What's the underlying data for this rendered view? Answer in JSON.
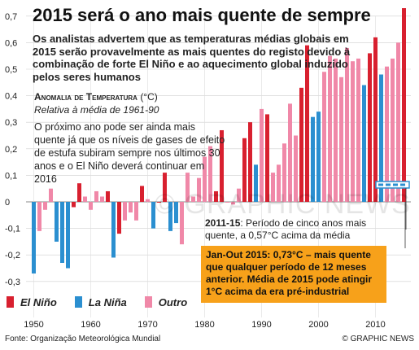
{
  "title": "2015 será o ano mais quente de sempre",
  "subtitle": "Os analistas advertem que as temperaturas médias globais em 2015 serão provavelmente as mais quentes do registo devido à combinação de forte El Niño e ao aquecimento global induzido pelos seres humanos",
  "anomaly_title": "Anomalia de Temperatura",
  "anomaly_unit": "(°C)",
  "anomaly_subtitle": "Relativa à média de 1961-90",
  "note": "O próximo ano pode ser ainda mais quente já que os níveis de gases de efeito de estufa subiram sempre nos últimos 30 anos e o El Niño deverá continuar em 2016",
  "period_label": "2011-15",
  "period_text": ": Período de cinco anos mais quente, a 0,57°C acima da média",
  "box_text": "Jan-Out 2015: 0,73°C – mais quente que qualquer período de 12 meses anterior. Média de 2015 pode atingir 1°C acima da era pré-industrial",
  "legend": [
    {
      "label": "El Niño",
      "color": "#d8202f"
    },
    {
      "label": "La Niña",
      "color": "#2b8fd0"
    },
    {
      "label": "Outro",
      "color": "#f088a8"
    }
  ],
  "source": "Fonte: Organização Meteorológica Mundial",
  "credit": "© GRAPHIC NEWS",
  "watermark": "© GRAPHIC NEWS",
  "colors": {
    "el_nino": "#d8202f",
    "la_nina": "#2b8fd0",
    "outro": "#f088a8",
    "box": "#f7a11a"
  },
  "chart_data": {
    "type": "bar",
    "ylim": [
      -0.35,
      0.7
    ],
    "y_ticks": [
      "0,7",
      "0,6",
      "0,5",
      "0,4",
      "0,3",
      "0,2",
      "0,1",
      "0",
      "-0,1",
      "-0,2",
      "-0,3"
    ],
    "y_tick_values": [
      0.7,
      0.6,
      0.5,
      0.4,
      0.3,
      0.2,
      0.1,
      0,
      -0.1,
      -0.2,
      -0.3
    ],
    "x_ticks": [
      "1950",
      "1960",
      "1970",
      "1980",
      "1990",
      "2000",
      "2010"
    ],
    "x_tick_values": [
      1950,
      1960,
      1970,
      1980,
      1990,
      2000,
      2010
    ],
    "series": [
      {
        "name": "El Niño",
        "color": "#d8202f"
      },
      {
        "name": "La Niña",
        "color": "#2b8fd0"
      },
      {
        "name": "Outro",
        "color": "#f088a8"
      }
    ],
    "bars": [
      {
        "year": 1950,
        "value": -0.27,
        "type": "la_nina"
      },
      {
        "year": 1951,
        "value": -0.11,
        "type": "outro"
      },
      {
        "year": 1952,
        "value": -0.03,
        "type": "outro"
      },
      {
        "year": 1953,
        "value": 0.05,
        "type": "outro"
      },
      {
        "year": 1954,
        "value": -0.15,
        "type": "la_nina"
      },
      {
        "year": 1955,
        "value": -0.23,
        "type": "la_nina"
      },
      {
        "year": 1956,
        "value": -0.25,
        "type": "la_nina"
      },
      {
        "year": 1957,
        "value": -0.02,
        "type": "el_nino"
      },
      {
        "year": 1958,
        "value": 0.07,
        "type": "el_nino"
      },
      {
        "year": 1959,
        "value": 0.02,
        "type": "outro"
      },
      {
        "year": 1960,
        "value": -0.03,
        "type": "outro"
      },
      {
        "year": 1961,
        "value": 0.04,
        "type": "outro"
      },
      {
        "year": 1962,
        "value": 0.02,
        "type": "outro"
      },
      {
        "year": 1963,
        "value": 0.04,
        "type": "el_nino"
      },
      {
        "year": 1964,
        "value": -0.21,
        "type": "la_nina"
      },
      {
        "year": 1965,
        "value": -0.12,
        "type": "el_nino"
      },
      {
        "year": 1966,
        "value": -0.07,
        "type": "outro"
      },
      {
        "year": 1967,
        "value": -0.04,
        "type": "outro"
      },
      {
        "year": 1968,
        "value": -0.07,
        "type": "outro"
      },
      {
        "year": 1969,
        "value": 0.06,
        "type": "el_nino"
      },
      {
        "year": 1970,
        "value": 0.01,
        "type": "outro"
      },
      {
        "year": 1971,
        "value": -0.1,
        "type": "la_nina"
      },
      {
        "year": 1972,
        "value": 0.0,
        "type": "el_nino"
      },
      {
        "year": 1973,
        "value": 0.11,
        "type": "el_nino"
      },
      {
        "year": 1974,
        "value": -0.11,
        "type": "la_nina"
      },
      {
        "year": 1975,
        "value": -0.08,
        "type": "la_nina"
      },
      {
        "year": 1976,
        "value": -0.16,
        "type": "outro"
      },
      {
        "year": 1977,
        "value": 0.11,
        "type": "outro"
      },
      {
        "year": 1978,
        "value": 0.02,
        "type": "outro"
      },
      {
        "year": 1979,
        "value": 0.09,
        "type": "outro"
      },
      {
        "year": 1980,
        "value": 0.17,
        "type": "outro"
      },
      {
        "year": 1981,
        "value": 0.21,
        "type": "outro"
      },
      {
        "year": 1982,
        "value": 0.04,
        "type": "el_nino"
      },
      {
        "year": 1983,
        "value": 0.27,
        "type": "el_nino"
      },
      {
        "year": 1984,
        "value": 0.0,
        "type": "outro"
      },
      {
        "year": 1985,
        "value": -0.01,
        "type": "outro"
      },
      {
        "year": 1986,
        "value": 0.05,
        "type": "outro"
      },
      {
        "year": 1987,
        "value": 0.24,
        "type": "el_nino"
      },
      {
        "year": 1988,
        "value": 0.3,
        "type": "el_nino"
      },
      {
        "year": 1989,
        "value": 0.14,
        "type": "la_nina"
      },
      {
        "year": 1990,
        "value": 0.35,
        "type": "outro"
      },
      {
        "year": 1991,
        "value": 0.33,
        "type": "el_nino"
      },
      {
        "year": 1992,
        "value": 0.11,
        "type": "outro"
      },
      {
        "year": 1993,
        "value": 0.14,
        "type": "outro"
      },
      {
        "year": 1994,
        "value": 0.22,
        "type": "outro"
      },
      {
        "year": 1995,
        "value": 0.37,
        "type": "outro"
      },
      {
        "year": 1996,
        "value": 0.25,
        "type": "outro"
      },
      {
        "year": 1997,
        "value": 0.43,
        "type": "el_nino"
      },
      {
        "year": 1998,
        "value": 0.59,
        "type": "el_nino"
      },
      {
        "year": 1999,
        "value": 0.32,
        "type": "la_nina"
      },
      {
        "year": 2000,
        "value": 0.34,
        "type": "la_nina"
      },
      {
        "year": 2001,
        "value": 0.49,
        "type": "outro"
      },
      {
        "year": 2002,
        "value": 0.55,
        "type": "outro"
      },
      {
        "year": 2003,
        "value": 0.54,
        "type": "outro"
      },
      {
        "year": 2004,
        "value": 0.47,
        "type": "outro"
      },
      {
        "year": 2005,
        "value": 0.58,
        "type": "outro"
      },
      {
        "year": 2006,
        "value": 0.53,
        "type": "outro"
      },
      {
        "year": 2007,
        "value": 0.54,
        "type": "outro"
      },
      {
        "year": 2008,
        "value": 0.44,
        "type": "la_nina"
      },
      {
        "year": 2009,
        "value": 0.56,
        "type": "el_nino"
      },
      {
        "year": 2010,
        "value": 0.62,
        "type": "el_nino"
      },
      {
        "year": 2011,
        "value": 0.48,
        "type": "la_nina"
      },
      {
        "year": 2012,
        "value": 0.51,
        "type": "outro"
      },
      {
        "year": 2013,
        "value": 0.54,
        "type": "outro"
      },
      {
        "year": 2014,
        "value": 0.6,
        "type": "outro"
      },
      {
        "year": 2015,
        "value": 0.73,
        "type": "el_nino"
      }
    ],
    "period_highlight": {
      "start": 2011,
      "end": 2015
    }
  }
}
